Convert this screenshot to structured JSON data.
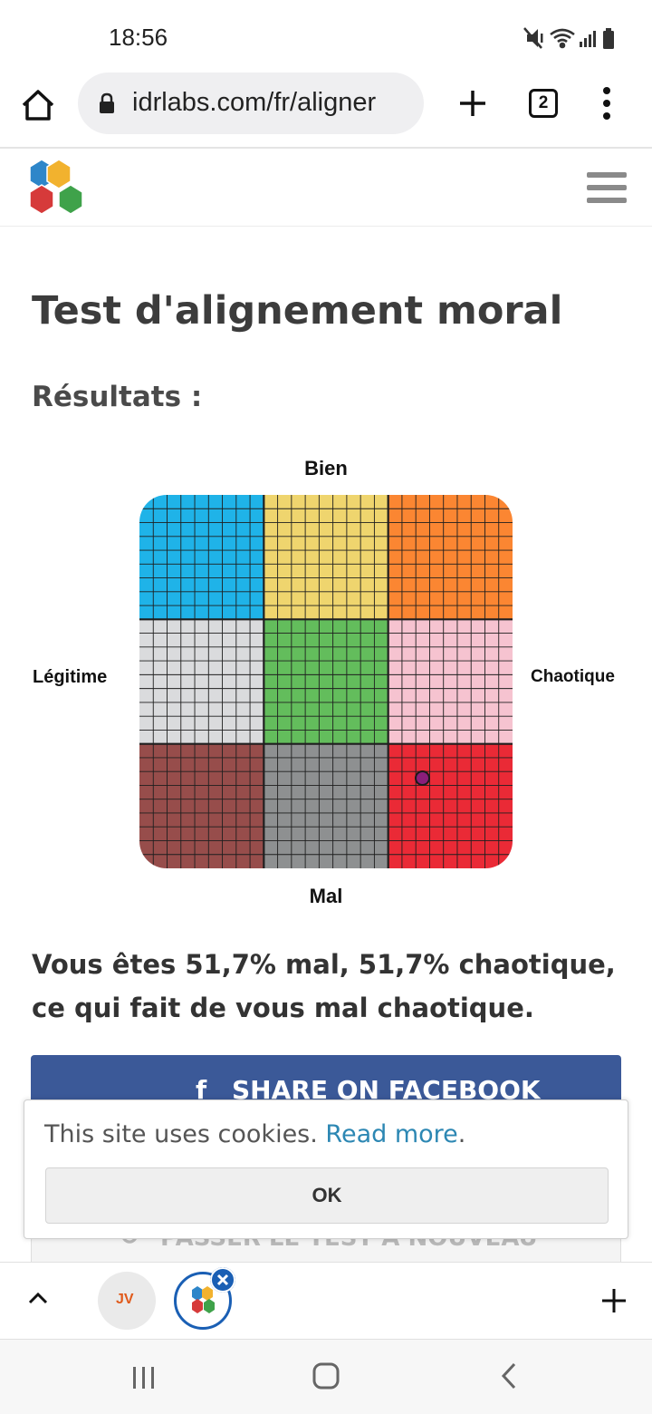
{
  "status_bar": {
    "time": "18:56",
    "icons": [
      "mute-vibrate-icon",
      "wifi-icon",
      "signal-icon",
      "battery-icon"
    ]
  },
  "browser": {
    "url": "idrlabs.com/fr/aligner",
    "tab_count": "2",
    "icons": [
      "home-icon",
      "lock-icon",
      "new-tab-icon",
      "tabs-icon",
      "overflow-menu-icon"
    ]
  },
  "site": {
    "logo_colors": [
      "#2e86c9",
      "#f2b22e",
      "#d63a3a",
      "#3fa24a"
    ],
    "menu_icon": "hamburger-icon"
  },
  "page": {
    "title": "Test d'alignement moral",
    "results_label": "Résultats :"
  },
  "chart_data": {
    "type": "heatmap",
    "title": "",
    "axes": {
      "top": "Bien",
      "bottom": "Mal",
      "left": "Légitime",
      "right": "Chaotique"
    },
    "rows": 3,
    "cols": 3,
    "cell_colors": [
      [
        "#1fb3e8",
        "#efd56e",
        "#fb8632"
      ],
      [
        "#dadbdd",
        "#63bd5c",
        "#f6c3d0"
      ],
      [
        "#974d4b",
        "#8e9091",
        "#ea2a36"
      ]
    ],
    "subgrid": 9,
    "grid_line_color": "#1f1f1f",
    "marker": {
      "x": 0.517,
      "y": -0.517,
      "x_range": [
        -1,
        1
      ],
      "y_range": [
        -1,
        1
      ],
      "color": "#8a1e7a"
    }
  },
  "result": {
    "text": "Vous êtes 51,7% mal, 51,7% chaotique, ce qui fait de vous mal chaotique."
  },
  "facebook": {
    "icon": "f",
    "label": "SHARE ON FACEBOOK",
    "color": "#3b5998"
  },
  "retake": {
    "icon": "↻",
    "label": "PASSER LE TEST À NOUVEAU"
  },
  "cookie": {
    "text": "This site uses cookies. ",
    "link": "Read more",
    "suffix": ".",
    "ok_label": "OK",
    "link_color": "#2c87b3"
  },
  "tab_strip": {
    "tabs": [
      {
        "name": "jv-tab",
        "logo": "JV"
      },
      {
        "name": "idrlabs-tab",
        "active": true
      }
    ],
    "icons": [
      "chevron-up-icon",
      "close-icon",
      "plus-icon"
    ]
  },
  "system_nav": {
    "icons": [
      "recents-icon",
      "home-button-icon",
      "back-icon"
    ]
  }
}
